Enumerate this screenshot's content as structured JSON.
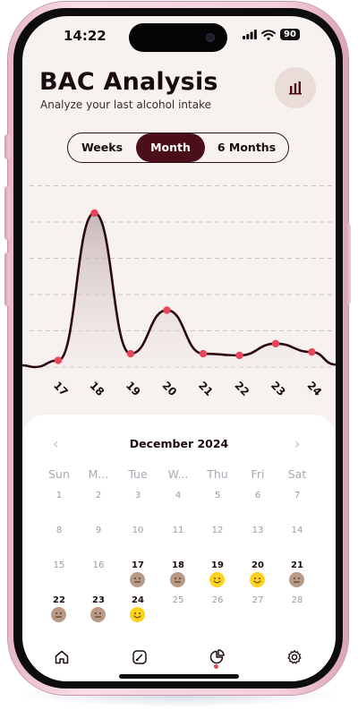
{
  "status": {
    "time": "14:22",
    "battery": "90"
  },
  "header": {
    "title": "BAC Analysis",
    "subtitle": "Analyze your last alcohol intake",
    "chart_button_icon": "bar-chart-icon"
  },
  "segments": [
    {
      "label": "Weeks",
      "active": false
    },
    {
      "label": "Month",
      "active": true
    },
    {
      "label": "6 Months",
      "active": false
    }
  ],
  "chart_data": {
    "type": "area",
    "x": [
      "17",
      "18",
      "19",
      "20",
      "21",
      "22",
      "23",
      "24"
    ],
    "values": [
      2,
      46,
      4,
      17,
      4,
      3.5,
      7,
      4.5
    ],
    "ylim": [
      0,
      50
    ],
    "grid": true,
    "xlabel": "",
    "ylabel": ""
  },
  "calendar": {
    "month_label": "December 2024",
    "prev_icon": "chevron-left-icon",
    "next_icon": "chevron-right-icon",
    "weekdays": [
      "Sun",
      "M...",
      "Tue",
      "W...",
      "Thu",
      "Fri",
      "Sat"
    ],
    "weeks": [
      [
        {
          "d": "1"
        },
        {
          "d": "2"
        },
        {
          "d": "3"
        },
        {
          "d": "4"
        },
        {
          "d": "5"
        },
        {
          "d": "6"
        },
        {
          "d": "7"
        }
      ],
      [
        {
          "d": "8"
        },
        {
          "d": "9"
        },
        {
          "d": "10"
        },
        {
          "d": "11"
        },
        {
          "d": "12"
        },
        {
          "d": "13"
        },
        {
          "d": "14"
        }
      ],
      [
        {
          "d": "15"
        },
        {
          "d": "16"
        },
        {
          "d": "17",
          "mood": "neutral"
        },
        {
          "d": "18",
          "mood": "neutral"
        },
        {
          "d": "19",
          "mood": "happy"
        },
        {
          "d": "20",
          "mood": "happy"
        },
        {
          "d": "21",
          "mood": "neutral"
        }
      ],
      [
        {
          "d": "22",
          "mood": "neutral"
        },
        {
          "d": "23",
          "mood": "neutral"
        },
        {
          "d": "24",
          "mood": "happy"
        },
        {
          "d": "25"
        },
        {
          "d": "26"
        },
        {
          "d": "27"
        },
        {
          "d": "28"
        }
      ]
    ]
  },
  "tabbar": {
    "items": [
      {
        "icon": "home-icon",
        "active": false
      },
      {
        "icon": "gauge-icon",
        "active": false
      },
      {
        "icon": "pie-chart-icon",
        "active": true
      },
      {
        "icon": "settings-icon",
        "active": false
      }
    ]
  },
  "colors": {
    "accent": "#4a0f19",
    "point": "#e8455a",
    "happy": "#ffd21f",
    "neutral": "#b89a87"
  }
}
